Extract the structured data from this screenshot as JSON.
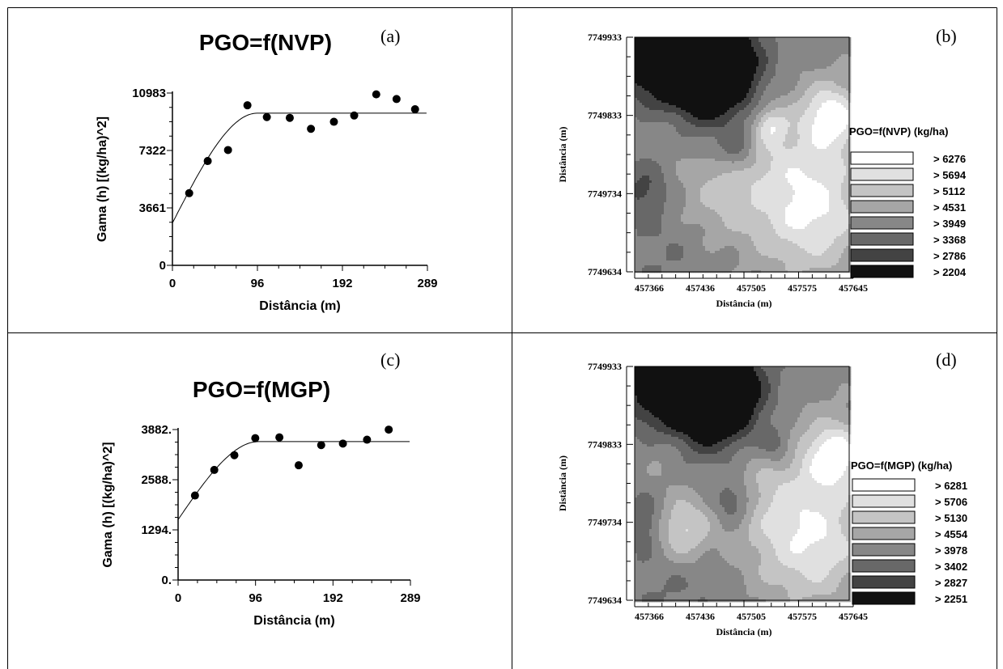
{
  "panels": {
    "a": {
      "letter": "(a)"
    },
    "b": {
      "letter": "(b)"
    },
    "c": {
      "letter": "(c)"
    },
    "d": {
      "letter": "(d)"
    }
  },
  "chart_data": [
    {
      "panel": "a",
      "type": "scatter",
      "title": "PGO=f(NVP)",
      "xlabel": "Distância (m)",
      "ylabel": "Gama (h) [(kg/ha)^2]",
      "xlim": [
        0,
        289
      ],
      "ylim": [
        0,
        10983
      ],
      "xticks": [
        "0",
        "96",
        "192",
        "289"
      ],
      "yticks": [
        "0",
        "3661",
        "7322",
        "10983"
      ],
      "points": {
        "x": [
          19,
          40,
          63,
          85,
          107,
          133,
          157,
          183,
          206,
          231,
          254,
          275
        ],
        "y": [
          4600,
          6650,
          7350,
          10200,
          9450,
          9400,
          8700,
          9150,
          9550,
          10900,
          10600,
          9950
        ]
      },
      "model": {
        "type": "spherical",
        "nugget": 2700,
        "sill": 9700,
        "range": 96,
        "xmax": 289
      }
    },
    {
      "panel": "b",
      "type": "heatmap",
      "legend_title": "PGO=f(NVP) (kg/ha)",
      "xlabel": "Distância (m)",
      "ylabel": "Distância (m)",
      "xticks": [
        "457366",
        "457436",
        "457505",
        "457575",
        "457645"
      ],
      "yticks": [
        "7749933",
        "7749833",
        "7749734",
        "7749634"
      ],
      "xlim": [
        457331,
        457645
      ],
      "ylim": [
        7749634,
        7749933
      ],
      "classes": [
        {
          "label": "> 6276",
          "color": "#ffffff"
        },
        {
          "label": "> 5694",
          "color": "#e0e0e0"
        },
        {
          "label": "> 5112",
          "color": "#c4c4c4"
        },
        {
          "label": "> 4531",
          "color": "#a6a6a6"
        },
        {
          "label": "> 3949",
          "color": "#878787"
        },
        {
          "label": "> 3368",
          "color": "#686868"
        },
        {
          "label": "> 2786",
          "color": "#434343"
        },
        {
          "label": "> 2204",
          "color": "#111111"
        }
      ],
      "field": {
        "base": 4300,
        "blobs": [
          {
            "x": 457415,
            "y": 7749905,
            "a": -2600,
            "s": 55
          },
          {
            "x": 457455,
            "y": 7749890,
            "a": -2300,
            "s": 42
          },
          {
            "x": 457360,
            "y": 7749910,
            "a": -1400,
            "s": 40
          },
          {
            "x": 457620,
            "y": 7749832,
            "a": 2100,
            "s": 28
          },
          {
            "x": 457560,
            "y": 7749750,
            "a": 1500,
            "s": 70
          },
          {
            "x": 457600,
            "y": 7749700,
            "a": 1100,
            "s": 50
          },
          {
            "x": 457440,
            "y": 7749730,
            "a": 900,
            "s": 45
          },
          {
            "x": 457480,
            "y": 7749790,
            "a": -1100,
            "s": 20
          },
          {
            "x": 457375,
            "y": 7749820,
            "a": 600,
            "s": 28
          },
          {
            "x": 457345,
            "y": 7749740,
            "a": -900,
            "s": 22
          },
          {
            "x": 457530,
            "y": 7749820,
            "a": 1300,
            "s": 16
          },
          {
            "x": 457390,
            "y": 7749690,
            "a": -500,
            "s": 70
          }
        ]
      }
    },
    {
      "panel": "c",
      "type": "scatter",
      "title": "PGO=f(MGP)",
      "xlabel": "Distância (m)",
      "ylabel": "Gama (h) [(kg/ha)^2]",
      "xlim": [
        0,
        289
      ],
      "ylim": [
        0,
        3882
      ],
      "xticks": [
        "0",
        "96",
        "192",
        "289"
      ],
      "yticks": [
        "0.",
        "1294.",
        "2588.",
        "3882."
      ],
      "points": {
        "x": [
          21,
          45,
          70,
          96,
          126,
          150,
          178,
          205,
          235,
          262
        ],
        "y": [
          2180,
          2840,
          3220,
          3660,
          3680,
          2960,
          3480,
          3520,
          3620,
          3880
        ]
      },
      "model": {
        "type": "spherical",
        "nugget": 1560,
        "sill": 3570,
        "range": 100,
        "xmax": 289
      }
    },
    {
      "panel": "d",
      "type": "heatmap",
      "legend_title": "PGO=f(MGP) (kg/ha)",
      "xlabel": "Distância (m)",
      "ylabel": "Distância (m)",
      "xticks": [
        "457366",
        "457436",
        "457505",
        "457575",
        "457645"
      ],
      "yticks": [
        "7749933",
        "7749833",
        "7749734",
        "7749634"
      ],
      "xlim": [
        457331,
        457645
      ],
      "ylim": [
        7749634,
        7749933
      ],
      "classes": [
        {
          "label": "> 6281",
          "color": "#ffffff"
        },
        {
          "label": "> 5706",
          "color": "#e0e0e0"
        },
        {
          "label": "> 5130",
          "color": "#c4c4c4"
        },
        {
          "label": "> 4554",
          "color": "#a6a6a6"
        },
        {
          "label": "> 3978",
          "color": "#878787"
        },
        {
          "label": "> 3402",
          "color": "#686868"
        },
        {
          "label": "> 2827",
          "color": "#434343"
        },
        {
          "label": "> 2251",
          "color": "#111111"
        }
      ],
      "field": {
        "base": 4350,
        "blobs": [
          {
            "x": 457425,
            "y": 7749910,
            "a": -2700,
            "s": 55
          },
          {
            "x": 457460,
            "y": 7749895,
            "a": -2200,
            "s": 40
          },
          {
            "x": 457360,
            "y": 7749915,
            "a": -1300,
            "s": 38
          },
          {
            "x": 457625,
            "y": 7749820,
            "a": 2100,
            "s": 28
          },
          {
            "x": 457560,
            "y": 7749750,
            "a": 1400,
            "s": 70
          },
          {
            "x": 457600,
            "y": 7749700,
            "a": 1000,
            "s": 50
          },
          {
            "x": 457400,
            "y": 7749725,
            "a": 1800,
            "s": 30
          },
          {
            "x": 457475,
            "y": 7749760,
            "a": -1200,
            "s": 20
          },
          {
            "x": 457540,
            "y": 7749830,
            "a": -1000,
            "s": 18
          },
          {
            "x": 457375,
            "y": 7749820,
            "a": 600,
            "s": 26
          },
          {
            "x": 457345,
            "y": 7749735,
            "a": -900,
            "s": 22
          },
          {
            "x": 457390,
            "y": 7749680,
            "a": -500,
            "s": 70
          }
        ]
      }
    }
  ]
}
